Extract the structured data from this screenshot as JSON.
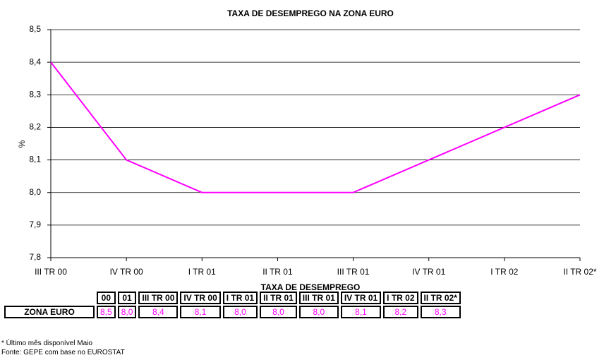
{
  "chart_data": {
    "type": "line",
    "title": "TAXA DE DESEMPREGO NA ZONA EURO",
    "y_label": "%",
    "categories": [
      "III TR 00",
      "IV TR 00",
      "I TR 01",
      "II TR 01",
      "III TR 01",
      "IV TR 01",
      "I TR 02",
      "II TR 02*"
    ],
    "values": [
      8.4,
      8.1,
      8.0,
      8.0,
      8.0,
      8.1,
      8.2,
      8.3
    ],
    "color": "#ff00ff",
    "ylim": [
      7.8,
      8.5
    ],
    "yticks": [
      {
        "value": 7.8,
        "label": "7,8"
      },
      {
        "value": 7.9,
        "label": "7,9"
      },
      {
        "value": 8.0,
        "label": "8,0"
      },
      {
        "value": 8.1,
        "label": "8,1"
      },
      {
        "value": 8.2,
        "label": "8,2"
      },
      {
        "value": 8.3,
        "label": "8,3"
      },
      {
        "value": 8.4,
        "label": "8,4"
      },
      {
        "value": 8.5,
        "label": "8,5"
      }
    ],
    "grid": true
  },
  "table": {
    "title": "TAXA DE DESEMPREGO",
    "columns": [
      "00",
      "01",
      "III TR 00",
      "IV TR 00",
      "I TR 01",
      "II TR 01",
      "III TR 01",
      "IV TR 01",
      "I TR 02",
      "II TR 02*"
    ],
    "rows": [
      [
        "ZONA EURO",
        "8,5",
        "8,0",
        "8,4",
        "8,1",
        "8,0",
        "8,0",
        "8,0",
        "8,1",
        "8,2",
        "8,3"
      ]
    ]
  },
  "notes": [
    "* Último mês disponível Maio",
    "Fonte: GEPE com base no EUROSTAT"
  ]
}
